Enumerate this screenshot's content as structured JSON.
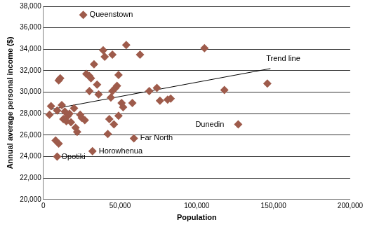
{
  "chart_data": {
    "type": "scatter",
    "xlabel": "Population",
    "ylabel": "Annual average personal income ($)",
    "x": [
      26000,
      5000,
      4000,
      9000,
      8000,
      10000,
      9000,
      10000,
      11000,
      12000,
      14000,
      13000,
      15000,
      16000,
      17000,
      18000,
      20000,
      21000,
      22000,
      24000,
      25000,
      27000,
      28000,
      30000,
      30000,
      31000,
      32000,
      33000,
      35000,
      36000,
      39000,
      40000,
      42000,
      43000,
      44000,
      45000,
      45000,
      46000,
      47000,
      48000,
      49000,
      49000,
      51000,
      52000,
      54000,
      58000,
      59000,
      63000,
      69000,
      74000,
      76000,
      81000,
      83000,
      105000,
      118000,
      127000,
      146000
    ],
    "values": [
      37200,
      28700,
      27900,
      28300,
      25500,
      25200,
      24000,
      31100,
      31300,
      28800,
      28200,
      27500,
      27300,
      27800,
      28000,
      27200,
      28500,
      26700,
      26300,
      27900,
      27600,
      27400,
      31700,
      31500,
      30100,
      31300,
      24500,
      32600,
      30700,
      29800,
      33900,
      33300,
      26100,
      27500,
      29500,
      30100,
      33500,
      27000,
      30400,
      30600,
      27800,
      31600,
      29000,
      28600,
      34400,
      29000,
      25700,
      33500,
      30100,
      30400,
      29200,
      29300,
      29400,
      34100,
      30200,
      27000,
      30800
    ],
    "color": "#9e5b4b",
    "marker": "diamond",
    "trend_line": {
      "label": "Trend line",
      "x": [
        5000,
        148000
      ],
      "values": [
        28400,
        32200
      ],
      "color": "#000000"
    },
    "annotations": [
      {
        "text": "Queenstown",
        "x": 26000,
        "y": 37200
      },
      {
        "text": "Opotiki",
        "x": 9000,
        "y": 24000
      },
      {
        "text": "Horowhenua",
        "x": 32000,
        "y": 24500
      },
      {
        "text": "Far North",
        "x": 59000,
        "y": 25700
      },
      {
        "text": "Dunedin",
        "x": 127000,
        "y": 27000
      }
    ],
    "xlim": [
      0,
      200000
    ],
    "xticks": [
      0,
      {
        "value": 50000,
        "label": "50,000"
      },
      {
        "value": 100000,
        "label": "100,000"
      },
      {
        "value": 150000,
        "label": "150,000"
      },
      {
        "value": 200000,
        "label": "200,000"
      }
    ],
    "ylim": [
      20000,
      38000
    ],
    "yticks": [
      {
        "value": 20000,
        "label": "20,000"
      },
      {
        "value": 22000,
        "label": "22,000"
      },
      {
        "value": 24000,
        "label": "24,000"
      },
      {
        "value": 26000,
        "label": "26,000"
      },
      {
        "value": 28000,
        "label": "28,000"
      },
      {
        "value": 30000,
        "label": "30,000"
      },
      {
        "value": 32000,
        "label": "32,000"
      },
      {
        "value": 34000,
        "label": "34,000"
      },
      {
        "value": 36000,
        "label": "36,000"
      },
      {
        "value": 38000,
        "label": "38,000"
      }
    ],
    "grid": "y"
  }
}
